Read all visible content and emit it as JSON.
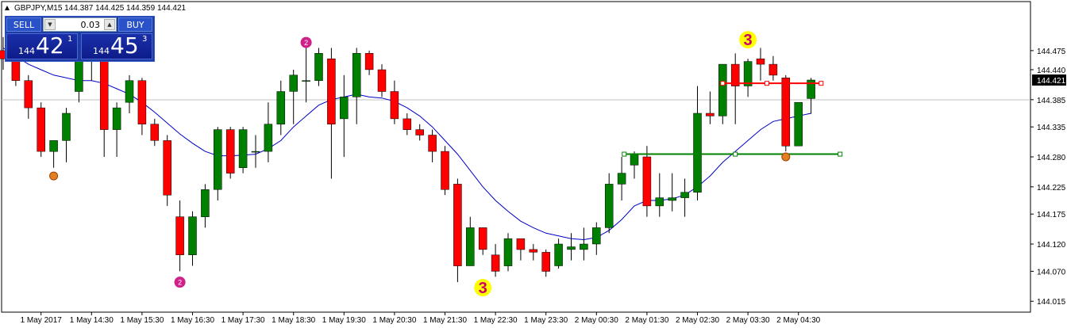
{
  "header": {
    "symbol_line": "GBPJPY,M15  144.387 144.425 144.359 144.421"
  },
  "trade_panel": {
    "sell_label": "SELL",
    "buy_label": "BUY",
    "lot": "0.03",
    "sell_quote": {
      "small": "144",
      "big": "42",
      "sup": "1"
    },
    "buy_quote": {
      "small": "144",
      "big": "45",
      "sup": "3"
    }
  },
  "colors": {
    "bull": "#008000",
    "bear": "#ff0000",
    "ma": "#0000c8",
    "grid_line": "#c0c0c0",
    "marker3": "#ffff00"
  },
  "chart_data": {
    "type": "candlestick",
    "symbol": "GBPJPY",
    "timeframe": "M15",
    "current_price": 144.421,
    "y_ticks": [
      144.475,
      144.44,
      144.421,
      144.385,
      144.335,
      144.28,
      144.225,
      144.175,
      144.12,
      144.07,
      144.015
    ],
    "y_tick_labels": [
      "144.475",
      "144.440",
      "144.421",
      "144.385",
      "144.335",
      "144.280",
      "144.225",
      "144.175",
      "144.120",
      "144.070",
      "144.015"
    ],
    "ylim": [
      143.995,
      144.565
    ],
    "x_ticks": [
      {
        "i": 3,
        "label": "1 May 2017"
      },
      {
        "i": 7,
        "label": "1 May 14:30"
      },
      {
        "i": 11,
        "label": "1 May 15:30"
      },
      {
        "i": 15,
        "label": "1 May 16:30"
      },
      {
        "i": 19,
        "label": "1 May 17:30"
      },
      {
        "i": 23,
        "label": "1 May 18:30"
      },
      {
        "i": 27,
        "label": "1 May 19:30"
      },
      {
        "i": 31,
        "label": "1 May 20:30"
      },
      {
        "i": 35,
        "label": "1 May 21:30"
      },
      {
        "i": 39,
        "label": "1 May 22:30"
      },
      {
        "i": 43,
        "label": "1 May 23:30"
      },
      {
        "i": 47,
        "label": "2 May 00:30"
      },
      {
        "i": 51,
        "label": "2 May 01:30"
      },
      {
        "i": 55,
        "label": "2 May 02:30"
      },
      {
        "i": 59,
        "label": "2 May 03:30"
      },
      {
        "i": 63,
        "label": "2 May 04:30"
      }
    ],
    "candles": [
      {
        "o": 144.475,
        "h": 144.5,
        "l": 144.44,
        "c": 144.46
      },
      {
        "o": 144.46,
        "h": 144.48,
        "l": 144.41,
        "c": 144.42
      },
      {
        "o": 144.42,
        "h": 144.43,
        "l": 144.35,
        "c": 144.37
      },
      {
        "o": 144.37,
        "h": 144.38,
        "l": 144.28,
        "c": 144.29
      },
      {
        "o": 144.29,
        "h": 144.31,
        "l": 144.26,
        "c": 144.31
      },
      {
        "o": 144.31,
        "h": 144.37,
        "l": 144.27,
        "c": 144.36
      },
      {
        "o": 144.4,
        "h": 144.47,
        "l": 144.38,
        "c": 144.46
      },
      {
        "o": 144.46,
        "h": 144.5,
        "l": 144.42,
        "c": 144.455
      },
      {
        "o": 144.455,
        "h": 144.465,
        "l": 144.28,
        "c": 144.33
      },
      {
        "o": 144.33,
        "h": 144.38,
        "l": 144.28,
        "c": 144.37
      },
      {
        "o": 144.38,
        "h": 144.43,
        "l": 144.36,
        "c": 144.42
      },
      {
        "o": 144.42,
        "h": 144.425,
        "l": 144.32,
        "c": 144.34
      },
      {
        "o": 144.34,
        "h": 144.35,
        "l": 144.3,
        "c": 144.31
      },
      {
        "o": 144.31,
        "h": 144.32,
        "l": 144.19,
        "c": 144.21
      },
      {
        "o": 144.17,
        "h": 144.2,
        "l": 144.07,
        "c": 144.1
      },
      {
        "o": 144.1,
        "h": 144.18,
        "l": 144.08,
        "c": 144.17
      },
      {
        "o": 144.17,
        "h": 144.23,
        "l": 144.15,
        "c": 144.22
      },
      {
        "o": 144.22,
        "h": 144.335,
        "l": 144.2,
        "c": 144.33
      },
      {
        "o": 144.33,
        "h": 144.335,
        "l": 144.24,
        "c": 144.25
      },
      {
        "o": 144.26,
        "h": 144.335,
        "l": 144.25,
        "c": 144.33
      },
      {
        "o": 144.29,
        "h": 144.32,
        "l": 144.26,
        "c": 144.29
      },
      {
        "o": 144.29,
        "h": 144.38,
        "l": 144.27,
        "c": 144.34
      },
      {
        "o": 144.34,
        "h": 144.42,
        "l": 144.32,
        "c": 144.4
      },
      {
        "o": 144.4,
        "h": 144.44,
        "l": 144.34,
        "c": 144.43
      },
      {
        "o": 144.42,
        "h": 144.48,
        "l": 144.38,
        "c": 144.42
      },
      {
        "o": 144.42,
        "h": 144.48,
        "l": 144.41,
        "c": 144.47
      },
      {
        "o": 144.46,
        "h": 144.48,
        "l": 144.24,
        "c": 144.34
      },
      {
        "o": 144.35,
        "h": 144.43,
        "l": 144.28,
        "c": 144.39
      },
      {
        "o": 144.39,
        "h": 144.48,
        "l": 144.34,
        "c": 144.47
      },
      {
        "o": 144.47,
        "h": 144.475,
        "l": 144.43,
        "c": 144.44
      },
      {
        "o": 144.44,
        "h": 144.45,
        "l": 144.39,
        "c": 144.4
      },
      {
        "o": 144.4,
        "h": 144.42,
        "l": 144.34,
        "c": 144.35
      },
      {
        "o": 144.35,
        "h": 144.36,
        "l": 144.32,
        "c": 144.33
      },
      {
        "o": 144.33,
        "h": 144.34,
        "l": 144.31,
        "c": 144.32
      },
      {
        "o": 144.32,
        "h": 144.33,
        "l": 144.27,
        "c": 144.29
      },
      {
        "o": 144.29,
        "h": 144.3,
        "l": 144.21,
        "c": 144.22
      },
      {
        "o": 144.23,
        "h": 144.24,
        "l": 144.05,
        "c": 144.08
      },
      {
        "o": 144.08,
        "h": 144.17,
        "l": 144.08,
        "c": 144.15
      },
      {
        "o": 144.15,
        "h": 144.15,
        "l": 144.1,
        "c": 144.11
      },
      {
        "o": 144.1,
        "h": 144.12,
        "l": 144.06,
        "c": 144.07
      },
      {
        "o": 144.08,
        "h": 144.14,
        "l": 144.07,
        "c": 144.13
      },
      {
        "o": 144.13,
        "h": 144.13,
        "l": 144.09,
        "c": 144.11
      },
      {
        "o": 144.11,
        "h": 144.12,
        "l": 144.09,
        "c": 144.105
      },
      {
        "o": 144.105,
        "h": 144.11,
        "l": 144.06,
        "c": 144.07
      },
      {
        "o": 144.08,
        "h": 144.13,
        "l": 144.075,
        "c": 144.12
      },
      {
        "o": 144.11,
        "h": 144.14,
        "l": 144.09,
        "c": 144.115
      },
      {
        "o": 144.11,
        "h": 144.15,
        "l": 144.09,
        "c": 144.12
      },
      {
        "o": 144.12,
        "h": 144.16,
        "l": 144.1,
        "c": 144.15
      },
      {
        "o": 144.15,
        "h": 144.25,
        "l": 144.14,
        "c": 144.23
      },
      {
        "o": 144.23,
        "h": 144.28,
        "l": 144.2,
        "c": 144.25
      },
      {
        "o": 144.265,
        "h": 144.29,
        "l": 144.24,
        "c": 144.285
      },
      {
        "o": 144.28,
        "h": 144.3,
        "l": 144.17,
        "c": 144.19
      },
      {
        "o": 144.19,
        "h": 144.25,
        "l": 144.17,
        "c": 144.205
      },
      {
        "o": 144.2,
        "h": 144.25,
        "l": 144.18,
        "c": 144.205
      },
      {
        "o": 144.205,
        "h": 144.24,
        "l": 144.17,
        "c": 144.215
      },
      {
        "o": 144.215,
        "h": 144.41,
        "l": 144.2,
        "c": 144.36
      },
      {
        "o": 144.36,
        "h": 144.4,
        "l": 144.34,
        "c": 144.355
      },
      {
        "o": 144.355,
        "h": 144.45,
        "l": 144.34,
        "c": 144.45
      },
      {
        "o": 144.45,
        "h": 144.47,
        "l": 144.34,
        "c": 144.41
      },
      {
        "o": 144.41,
        "h": 144.46,
        "l": 144.39,
        "c": 144.455
      },
      {
        "o": 144.46,
        "h": 144.48,
        "l": 144.42,
        "c": 144.45
      },
      {
        "o": 144.45,
        "h": 144.465,
        "l": 144.42,
        "c": 144.43
      },
      {
        "o": 144.425,
        "h": 144.43,
        "l": 144.29,
        "c": 144.3
      },
      {
        "o": 144.3,
        "h": 144.38,
        "l": 144.3,
        "c": 144.38
      },
      {
        "o": 144.387,
        "h": 144.425,
        "l": 144.359,
        "c": 144.421
      }
    ],
    "moving_average": [
      144.48,
      144.465,
      144.45,
      144.44,
      144.43,
      144.425,
      144.42,
      144.42,
      144.415,
      144.405,
      144.395,
      144.38,
      144.362,
      144.342,
      144.322,
      144.305,
      144.29,
      144.282,
      144.282,
      144.283,
      144.285,
      144.295,
      144.31,
      144.335,
      144.355,
      144.375,
      144.385,
      144.39,
      144.395,
      144.39,
      144.388,
      144.382,
      144.37,
      144.355,
      144.335,
      144.31,
      144.285,
      144.255,
      144.225,
      144.2,
      144.18,
      144.162,
      144.15,
      144.14,
      144.135,
      144.13,
      144.128,
      144.132,
      144.145,
      144.165,
      144.19,
      144.2,
      144.2,
      144.203,
      144.21,
      144.225,
      144.245,
      144.27,
      144.29,
      144.31,
      144.33,
      144.345,
      144.35,
      144.355,
      144.36
    ],
    "markers": [
      {
        "i": 4,
        "price": 144.245,
        "kind": "dot",
        "color": "#e08020"
      },
      {
        "i": 7,
        "price": 144.5,
        "kind": "dot",
        "color": "#e08020"
      },
      {
        "i": 14,
        "price": 144.05,
        "kind": "num",
        "text": "2",
        "color": "#d0208a"
      },
      {
        "i": 24,
        "price": 144.49,
        "kind": "num",
        "text": "2",
        "color": "#d0208a"
      },
      {
        "i": 38,
        "price": 144.04,
        "kind": "num3",
        "text": "3"
      },
      {
        "i": 59,
        "price": 144.495,
        "kind": "num3",
        "text": "3"
      },
      {
        "i": 62,
        "price": 144.28,
        "kind": "dot",
        "color": "#e08020"
      }
    ],
    "levels": [
      {
        "from": 57,
        "to": 64.8,
        "price": 144.415,
        "color": "#ff0000",
        "handles": [
          57,
          60.5,
          64.8
        ]
      },
      {
        "from": 49.2,
        "to": 66.3,
        "price": 144.285,
        "color": "#008000",
        "handles": [
          49.2,
          58,
          66.3
        ]
      }
    ]
  }
}
